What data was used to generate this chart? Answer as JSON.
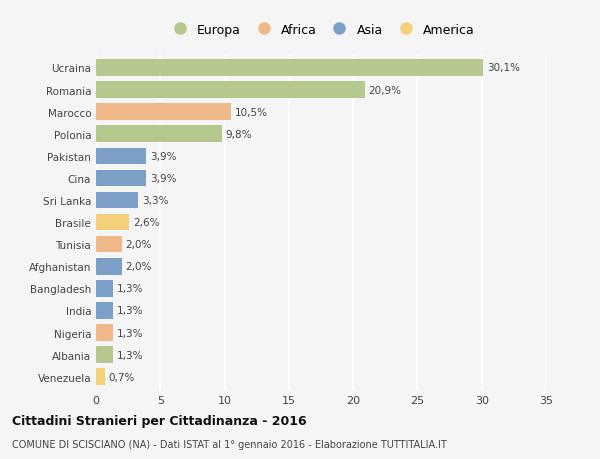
{
  "countries": [
    "Ucraina",
    "Romania",
    "Marocco",
    "Polonia",
    "Pakistan",
    "Cina",
    "Sri Lanka",
    "Brasile",
    "Tunisia",
    "Afghanistan",
    "Bangladesh",
    "India",
    "Nigeria",
    "Albania",
    "Venezuela"
  ],
  "values": [
    30.1,
    20.9,
    10.5,
    9.8,
    3.9,
    3.9,
    3.3,
    2.6,
    2.0,
    2.0,
    1.3,
    1.3,
    1.3,
    1.3,
    0.7
  ],
  "labels": [
    "30,1%",
    "20,9%",
    "10,5%",
    "9,8%",
    "3,9%",
    "3,9%",
    "3,3%",
    "2,6%",
    "2,0%",
    "2,0%",
    "1,3%",
    "1,3%",
    "1,3%",
    "1,3%",
    "0,7%"
  ],
  "regions": [
    "Europa",
    "Europa",
    "Africa",
    "Europa",
    "Asia",
    "Asia",
    "Asia",
    "America",
    "Africa",
    "Asia",
    "Asia",
    "Asia",
    "Africa",
    "Europa",
    "America"
  ],
  "colors": {
    "Europa": "#b5c98e",
    "Africa": "#f0b98a",
    "Asia": "#7b9fc7",
    "America": "#f5d07a"
  },
  "legend_order": [
    "Europa",
    "Africa",
    "Asia",
    "America"
  ],
  "xlim": [
    0,
    35
  ],
  "xticks": [
    0,
    5,
    10,
    15,
    20,
    25,
    30,
    35
  ],
  "title": "Cittadini Stranieri per Cittadinanza - 2016",
  "subtitle": "COMUNE DI SCISCIANO (NA) - Dati ISTAT al 1° gennaio 2016 - Elaborazione TUTTITALIA.IT",
  "background_color": "#f5f5f5",
  "grid_color": "#ffffff",
  "bar_height": 0.75,
  "label_fontsize": 7.5,
  "ytick_fontsize": 7.5,
  "xtick_fontsize": 8
}
